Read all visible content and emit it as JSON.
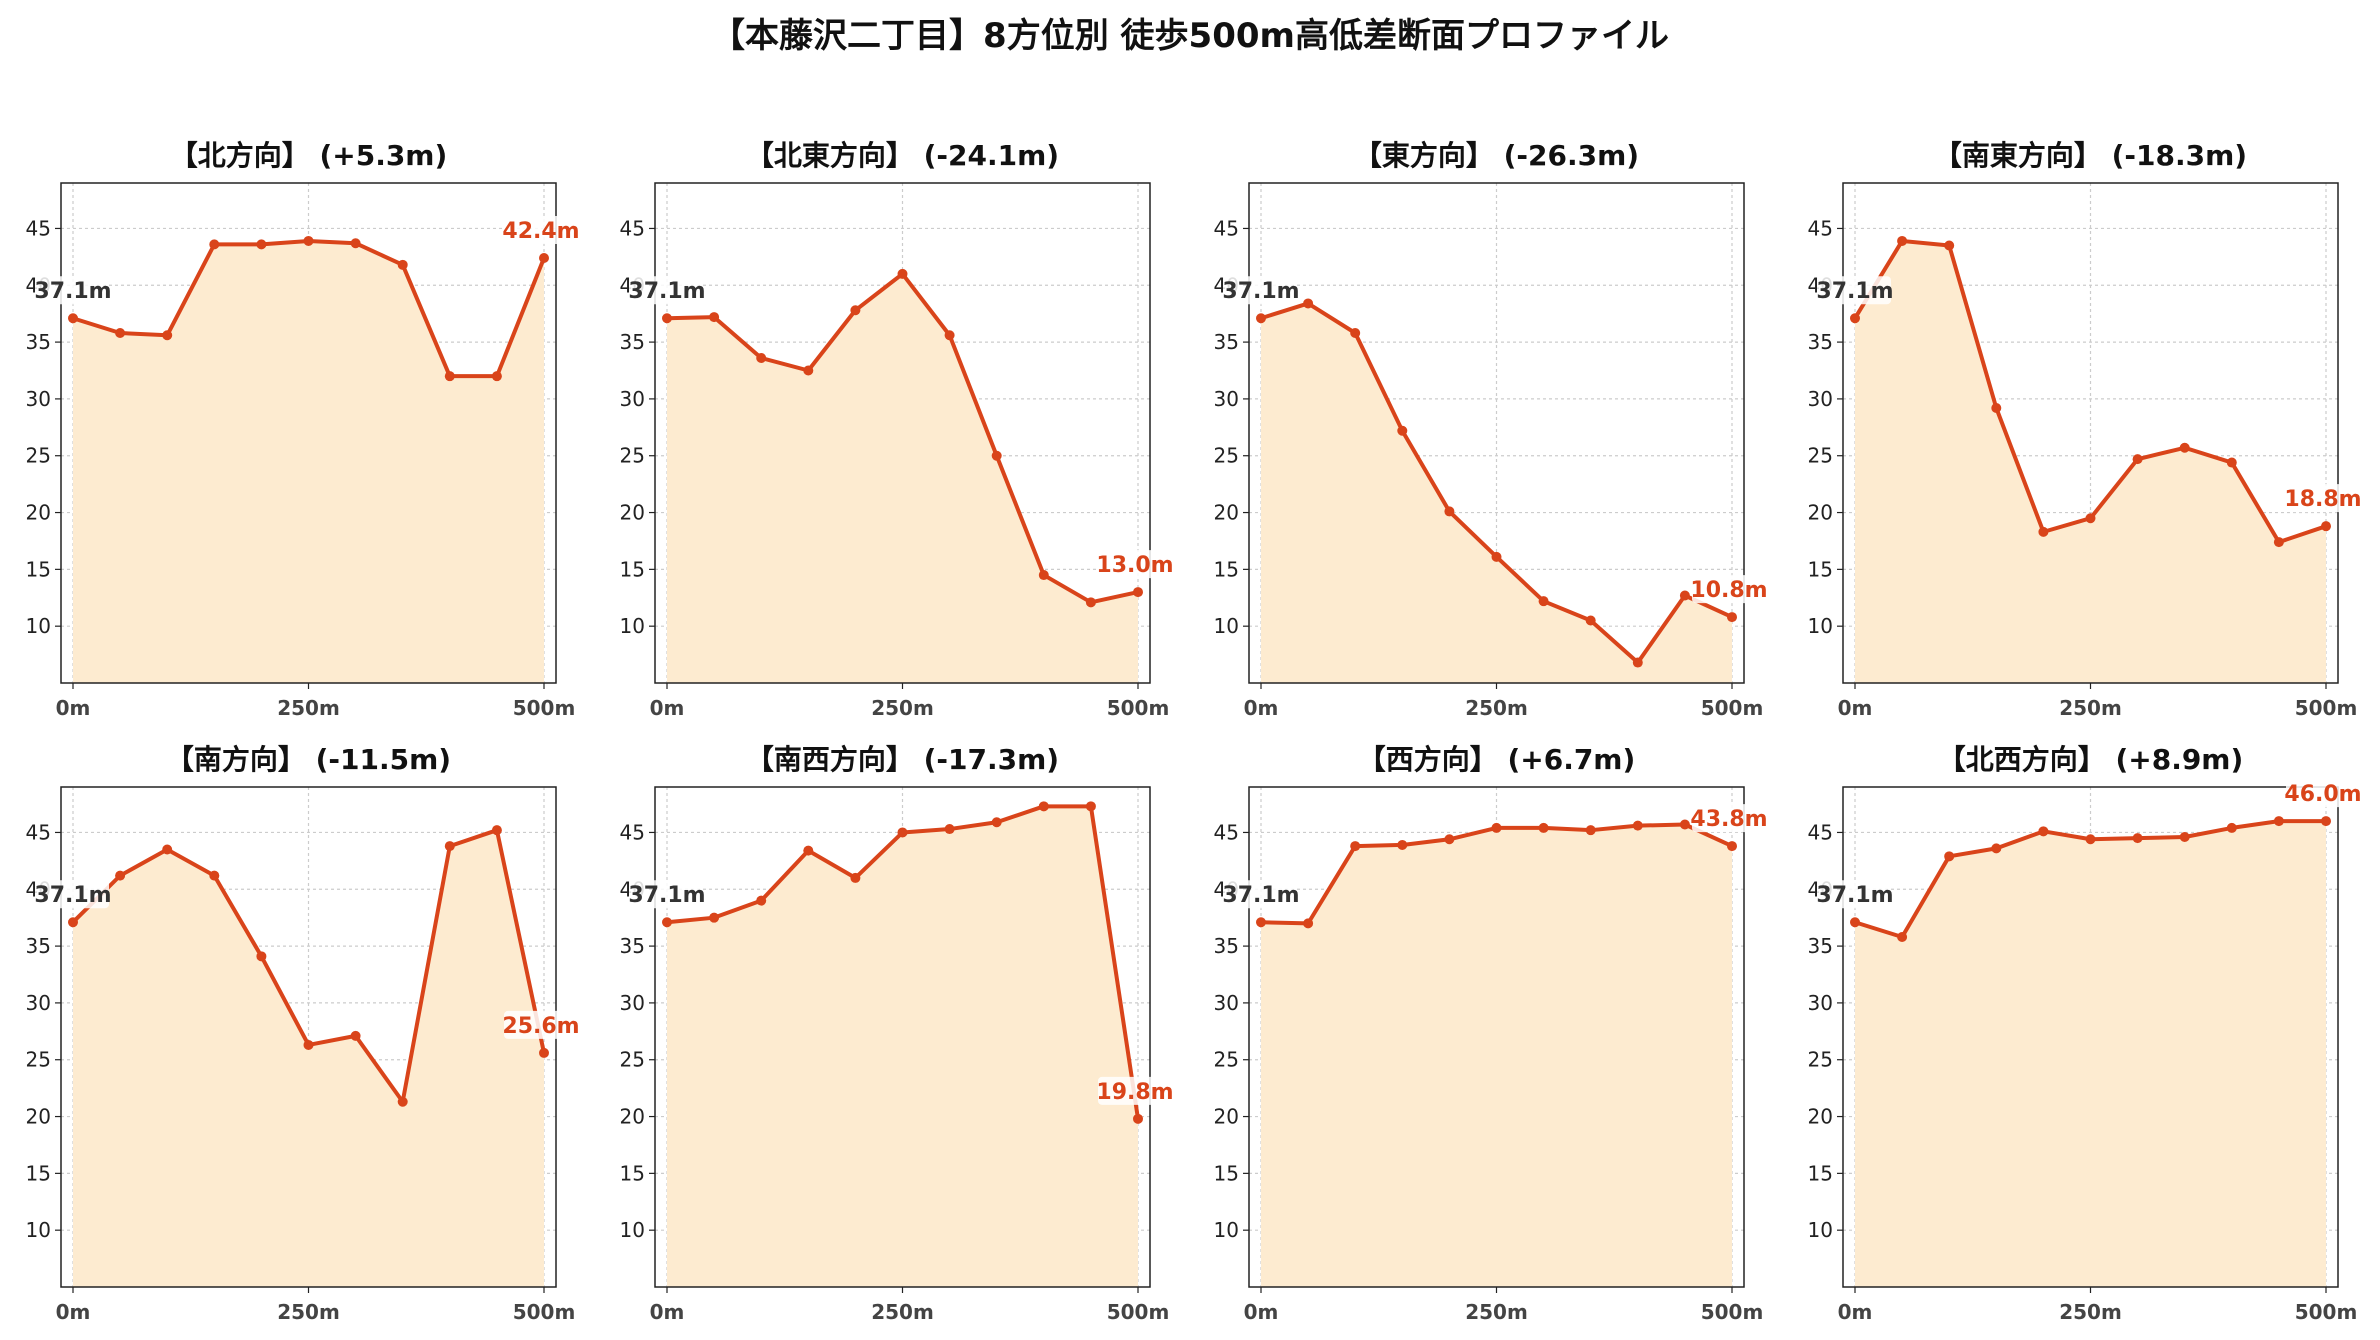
{
  "title": "【本藤沢二丁目】8方位別 徒歩500m高低差断面プロファイル",
  "colors": {
    "line": "#d9441a",
    "fill": "#fdebd0",
    "start_label": "#333333",
    "end_label": "#d9441a",
    "grid": "#cccccc"
  },
  "chart_data": [
    {
      "type": "area",
      "title": "【北方向】 (+5.3m)",
      "x": [
        0,
        50,
        100,
        150,
        200,
        250,
        300,
        350,
        400,
        450,
        500
      ],
      "y": [
        37.1,
        35.8,
        35.6,
        43.6,
        43.6,
        43.9,
        43.7,
        41.8,
        32.0,
        32.0,
        42.4
      ],
      "xticks": [
        "0m",
        "250m",
        "500m"
      ],
      "yticks": [
        10,
        15,
        20,
        25,
        30,
        35,
        40,
        45
      ],
      "ylim": [
        5,
        49
      ],
      "start_label": "37.1m",
      "end_label": "42.4m"
    },
    {
      "type": "area",
      "title": "【北東方向】 (-24.1m)",
      "x": [
        0,
        50,
        100,
        150,
        200,
        250,
        300,
        350,
        400,
        450,
        500
      ],
      "y": [
        37.1,
        37.2,
        33.6,
        32.5,
        37.8,
        41.0,
        35.6,
        25.0,
        14.5,
        12.1,
        13.0
      ],
      "xticks": [
        "0m",
        "250m",
        "500m"
      ],
      "yticks": [
        10,
        15,
        20,
        25,
        30,
        35,
        40,
        45
      ],
      "ylim": [
        5,
        49
      ],
      "start_label": "37.1m",
      "end_label": "13.0m"
    },
    {
      "type": "area",
      "title": "【東方向】 (-26.3m)",
      "x": [
        0,
        50,
        100,
        150,
        200,
        250,
        300,
        350,
        400,
        450,
        500
      ],
      "y": [
        37.1,
        38.4,
        35.8,
        27.2,
        20.1,
        16.1,
        12.2,
        10.5,
        6.8,
        12.7,
        10.8
      ],
      "xticks": [
        "0m",
        "250m",
        "500m"
      ],
      "yticks": [
        10,
        15,
        20,
        25,
        30,
        35,
        40,
        45
      ],
      "ylim": [
        5,
        49
      ],
      "start_label": "37.1m",
      "end_label": "10.8m"
    },
    {
      "type": "area",
      "title": "【南東方向】 (-18.3m)",
      "x": [
        0,
        50,
        100,
        150,
        200,
        250,
        300,
        350,
        400,
        450,
        500
      ],
      "y": [
        37.1,
        43.9,
        43.5,
        29.2,
        18.3,
        19.5,
        24.7,
        25.7,
        24.4,
        17.4,
        18.8
      ],
      "xticks": [
        "0m",
        "250m",
        "500m"
      ],
      "yticks": [
        10,
        15,
        20,
        25,
        30,
        35,
        40,
        45
      ],
      "ylim": [
        5,
        49
      ],
      "start_label": "37.1m",
      "end_label": "18.8m"
    },
    {
      "type": "area",
      "title": "【南方向】 (-11.5m)",
      "x": [
        0,
        50,
        100,
        150,
        200,
        250,
        300,
        350,
        400,
        450,
        500
      ],
      "y": [
        37.1,
        41.2,
        43.5,
        41.2,
        34.1,
        26.3,
        27.1,
        21.3,
        43.8,
        45.2,
        25.6
      ],
      "xticks": [
        "0m",
        "250m",
        "500m"
      ],
      "yticks": [
        10,
        15,
        20,
        25,
        30,
        35,
        40,
        45
      ],
      "ylim": [
        5,
        49
      ],
      "start_label": "37.1m",
      "end_label": "25.6m"
    },
    {
      "type": "area",
      "title": "【南西方向】 (-17.3m)",
      "x": [
        0,
        50,
        100,
        150,
        200,
        250,
        300,
        350,
        400,
        450,
        500
      ],
      "y": [
        37.1,
        37.5,
        39.0,
        43.4,
        41.0,
        45.0,
        45.3,
        45.9,
        47.3,
        47.3,
        19.8
      ],
      "xticks": [
        "0m",
        "250m",
        "500m"
      ],
      "yticks": [
        10,
        15,
        20,
        25,
        30,
        35,
        40,
        45
      ],
      "ylim": [
        5,
        49
      ],
      "start_label": "37.1m",
      "end_label": "19.8m"
    },
    {
      "type": "area",
      "title": "【西方向】 (+6.7m)",
      "x": [
        0,
        50,
        100,
        150,
        200,
        250,
        300,
        350,
        400,
        450,
        500
      ],
      "y": [
        37.1,
        37.0,
        43.8,
        43.9,
        44.4,
        45.4,
        45.4,
        45.2,
        45.6,
        45.7,
        43.8
      ],
      "xticks": [
        "0m",
        "250m",
        "500m"
      ],
      "yticks": [
        10,
        15,
        20,
        25,
        30,
        35,
        40,
        45
      ],
      "ylim": [
        5,
        49
      ],
      "start_label": "37.1m",
      "end_label": "43.8m"
    },
    {
      "type": "area",
      "title": "【北西方向】 (+8.9m)",
      "x": [
        0,
        50,
        100,
        150,
        200,
        250,
        300,
        350,
        400,
        450,
        500
      ],
      "y": [
        37.1,
        35.8,
        42.9,
        43.6,
        45.1,
        44.4,
        44.5,
        44.6,
        45.4,
        46.0,
        46.0
      ],
      "xticks": [
        "0m",
        "250m",
        "500m"
      ],
      "yticks": [
        10,
        15,
        20,
        25,
        30,
        35,
        40,
        45
      ],
      "ylim": [
        5,
        49
      ],
      "start_label": "37.1m",
      "end_label": "46.0m"
    }
  ]
}
